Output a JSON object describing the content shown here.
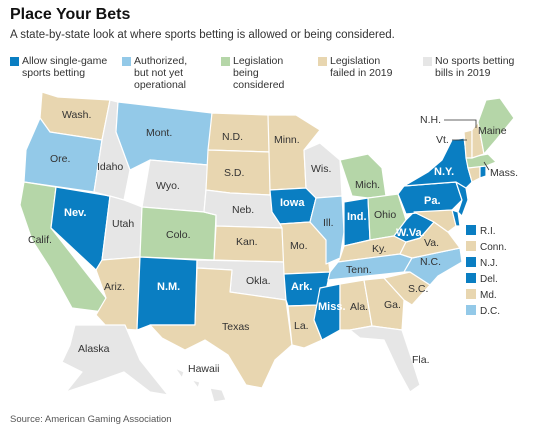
{
  "title": "Place Your Bets",
  "subtitle": "A state-by-state look at where sports betting is allowed or being considered.",
  "colors": {
    "single_game": "#0a7ec2",
    "authorized": "#93c9e8",
    "considered": "#b5d6a8",
    "failed": "#e8d6b0",
    "none": "#e6e6e6"
  },
  "legend": [
    {
      "key": "single_game",
      "label": "Allow single-game\nsports betting"
    },
    {
      "key": "authorized",
      "label": "Authorized,\nbut not yet\noperational"
    },
    {
      "key": "considered",
      "label": "Legislation\nbeing\nconsidered"
    },
    {
      "key": "failed",
      "label": "Legislation\nfailed in 2019"
    },
    {
      "key": "none",
      "label": "No sports betting\nbills in 2019"
    }
  ],
  "states": {
    "wa": {
      "name": "Wash.",
      "status": "failed"
    },
    "or": {
      "name": "Ore.",
      "status": "authorized"
    },
    "ca": {
      "name": "Calif.",
      "status": "considered"
    },
    "nv": {
      "name": "Nev.",
      "status": "single_game"
    },
    "id": {
      "name": "Idaho",
      "status": "none"
    },
    "mt": {
      "name": "Mont.",
      "status": "authorized"
    },
    "wy": {
      "name": "Wyo.",
      "status": "none"
    },
    "ut": {
      "name": "Utah",
      "status": "none"
    },
    "co": {
      "name": "Colo.",
      "status": "considered"
    },
    "az": {
      "name": "Ariz.",
      "status": "failed"
    },
    "nm": {
      "name": "N.M.",
      "status": "single_game"
    },
    "nd": {
      "name": "N.D.",
      "status": "failed"
    },
    "sd": {
      "name": "S.D.",
      "status": "failed"
    },
    "ne": {
      "name": "Neb.",
      "status": "none"
    },
    "ks": {
      "name": "Kan.",
      "status": "failed"
    },
    "ok": {
      "name": "Okla.",
      "status": "none"
    },
    "tx": {
      "name": "Texas",
      "status": "failed"
    },
    "mn": {
      "name": "Minn.",
      "status": "failed"
    },
    "ia": {
      "name": "Iowa",
      "status": "single_game"
    },
    "mo": {
      "name": "Mo.",
      "status": "failed"
    },
    "ar": {
      "name": "Ark.",
      "status": "single_game"
    },
    "la": {
      "name": "La.",
      "status": "failed"
    },
    "wi": {
      "name": "Wis.",
      "status": "none"
    },
    "il": {
      "name": "Ill.",
      "status": "authorized"
    },
    "mi": {
      "name": "Mich.",
      "status": "considered"
    },
    "in": {
      "name": "Ind.",
      "status": "single_game"
    },
    "oh": {
      "name": "Ohio",
      "status": "considered"
    },
    "ky": {
      "name": "Ky.",
      "status": "failed"
    },
    "tn": {
      "name": "Tenn.",
      "status": "authorized"
    },
    "ms": {
      "name": "Miss.",
      "status": "single_game"
    },
    "al": {
      "name": "Ala.",
      "status": "failed"
    },
    "ga": {
      "name": "Ga.",
      "status": "failed"
    },
    "fl": {
      "name": "Fla.",
      "status": "none"
    },
    "sc": {
      "name": "S.C.",
      "status": "failed"
    },
    "nc": {
      "name": "N.C.",
      "status": "authorized"
    },
    "va": {
      "name": "Va.",
      "status": "failed"
    },
    "wv": {
      "name": "W.Va.",
      "status": "single_game"
    },
    "pa": {
      "name": "Pa.",
      "status": "single_game"
    },
    "ny": {
      "name": "N.Y.",
      "status": "single_game"
    },
    "nj": {
      "name": "",
      "status": "single_game"
    },
    "de": {
      "name": "",
      "status": "single_game"
    },
    "md": {
      "name": "",
      "status": "failed"
    },
    "ct": {
      "name": "",
      "status": "failed"
    },
    "ri": {
      "name": "",
      "status": "single_game"
    },
    "ma": {
      "name": "Mass.",
      "status": "considered"
    },
    "vt": {
      "name": "Vt.",
      "status": "failed"
    },
    "nh": {
      "name": "N.H.",
      "status": "failed"
    },
    "me": {
      "name": "Maine",
      "status": "considered"
    },
    "ak": {
      "name": "Alaska",
      "status": "none"
    },
    "hi": {
      "name": "Hawaii",
      "status": "none"
    }
  },
  "small_states": [
    {
      "name": "R.I.",
      "status": "single_game"
    },
    {
      "name": "Conn.",
      "status": "failed"
    },
    {
      "name": "N.J.",
      "status": "single_game"
    },
    {
      "name": "Del.",
      "status": "single_game"
    },
    {
      "name": "Md.",
      "status": "failed"
    },
    {
      "name": "D.C.",
      "status": "authorized"
    }
  ],
  "source": "Source: American Gaming Association"
}
